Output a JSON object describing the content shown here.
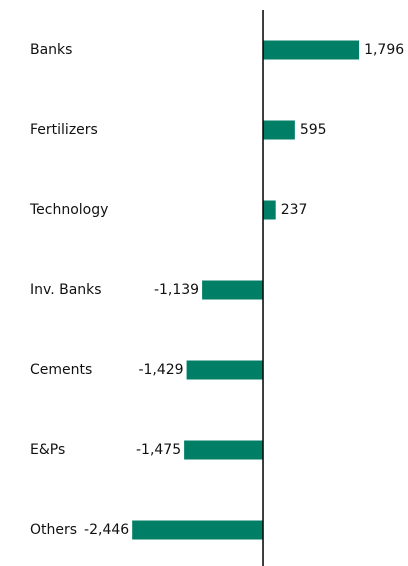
{
  "chart_data": {
    "type": "barh",
    "categories": [
      "Banks",
      "Fertilizers",
      "Technology",
      "Inv. Banks",
      "Cements",
      "E&Ps",
      "Others"
    ],
    "values": [
      1796,
      595,
      237,
      -1139,
      -1429,
      -1475,
      -2446
    ],
    "value_labels": [
      "1,796",
      "595",
      "237",
      "-1,139",
      "-1,429",
      "-1,475",
      "-2,446"
    ],
    "color": "#007f66",
    "xlim": [
      -2500,
      2000
    ]
  }
}
